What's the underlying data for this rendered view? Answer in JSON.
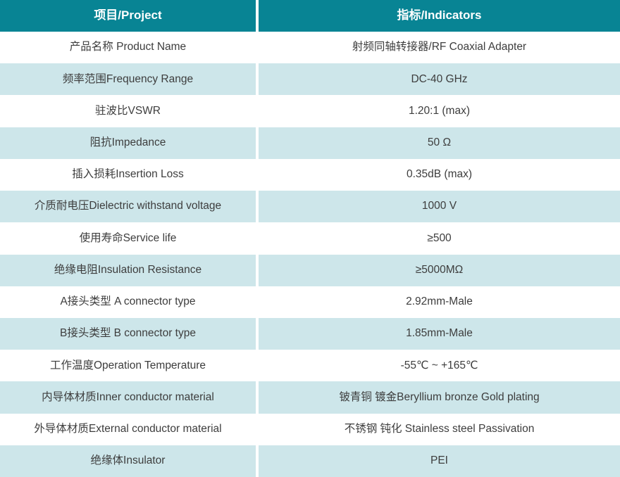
{
  "table": {
    "header": {
      "project": "项目/Project",
      "indicator": "指标/Indicators"
    },
    "rows": [
      {
        "project": "产品名称 Product Name",
        "indicator": "射频同轴转接器/RF Coaxial Adapter"
      },
      {
        "project": "频率范围Frequency Range",
        "indicator": "DC-40 GHz"
      },
      {
        "project": "驻波比VSWR",
        "indicator": "1.20:1 (max)"
      },
      {
        "project": "阻抗Impedance",
        "indicator": "50 Ω"
      },
      {
        "project": "插入损耗Insertion Loss",
        "indicator": "0.35dB (max)"
      },
      {
        "project": "介质耐电压Dielectric withstand voltage",
        "indicator": "1000 V"
      },
      {
        "project": "使用寿命Service life",
        "indicator": "≥500"
      },
      {
        "project": "绝缘电阻Insulation Resistance",
        "indicator": "≥5000MΩ"
      },
      {
        "project": "A接头类型 A connector type",
        "indicator": "2.92mm-Male"
      },
      {
        "project": "B接头类型 B connector type",
        "indicator": "1.85mm-Male"
      },
      {
        "project": "工作温度Operation Temperature",
        "indicator": "-55℃ ~ +165℃"
      },
      {
        "project": "内导体材质Inner conductor material",
        "indicator": "铍青铜 镀金Beryllium bronze Gold plating"
      },
      {
        "project": "外导体材质External conductor material",
        "indicator": "不锈钢 钝化 Stainless steel Passivation"
      },
      {
        "project": "绝缘体Insulator",
        "indicator": "PEI"
      }
    ]
  },
  "colors": {
    "header_bg": "#088494",
    "header_text": "#ffffff",
    "row_alt_bg": "#cde6ea",
    "text": "#3d3d3d",
    "divider": "#ffffff"
  }
}
